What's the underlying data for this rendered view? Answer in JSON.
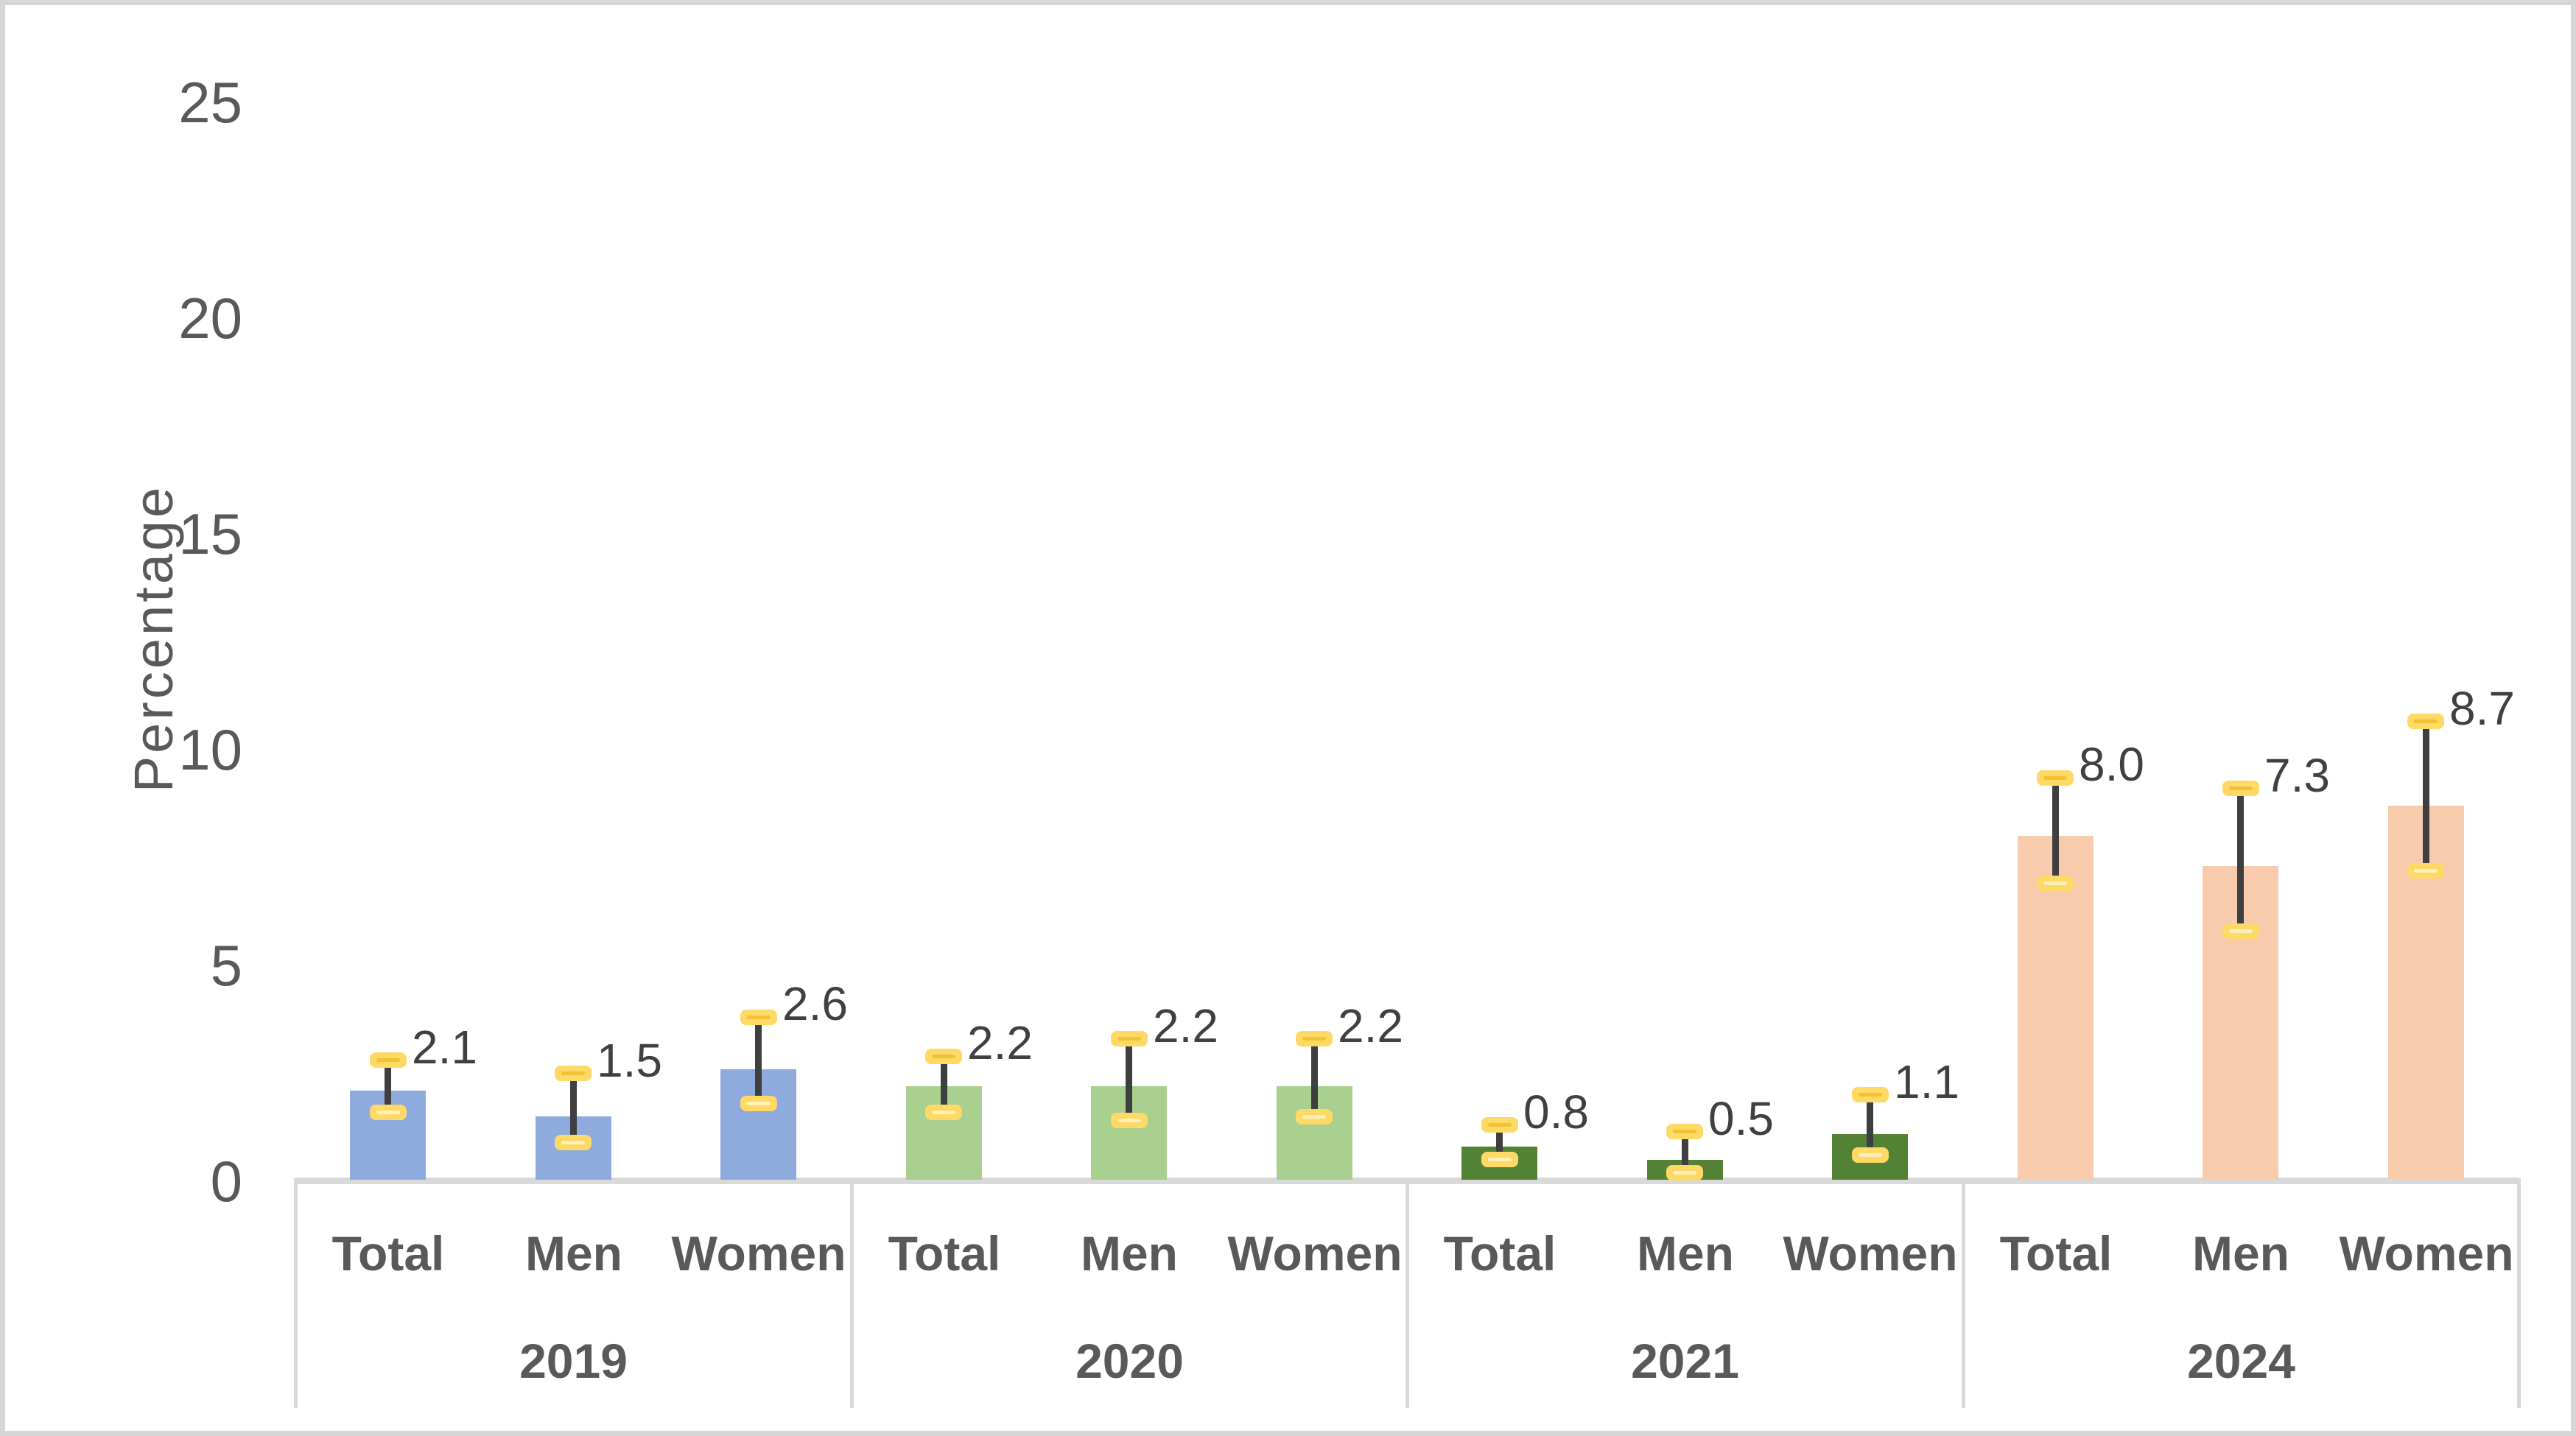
{
  "chart_data": {
    "type": "bar",
    "title": "",
    "xlabel": "",
    "ylabel": "Percentage",
    "ylim": [
      0,
      25
    ],
    "yticks": [
      "0",
      "5",
      "10",
      "15",
      "20",
      "25"
    ],
    "grid": false,
    "legend": false,
    "error_bars": true,
    "error_cap_color": "#FFD966",
    "error_line_color": "#3F3F3F",
    "axis_color": "#D9D9D9",
    "tick_text_color": "#595959",
    "value_label_color": "#404040",
    "categories_per_group": [
      "Total",
      "Men",
      "Women"
    ],
    "groups": [
      {
        "year": "2019",
        "bar_color": "#8FAADC",
        "bars": [
          {
            "category": "Total",
            "value": 2.1,
            "label": "2.1",
            "err_low": 1.6,
            "err_high": 2.8
          },
          {
            "category": "Men",
            "value": 1.5,
            "label": "1.5",
            "err_low": 0.9,
            "err_high": 2.5
          },
          {
            "category": "Women",
            "value": 2.6,
            "label": "2.6",
            "err_low": 1.8,
            "err_high": 3.8
          }
        ]
      },
      {
        "year": "2020",
        "bar_color": "#A9D08E",
        "bars": [
          {
            "category": "Total",
            "value": 2.2,
            "label": "2.2",
            "err_low": 1.6,
            "err_high": 2.9
          },
          {
            "category": "Men",
            "value": 2.2,
            "label": "2.2",
            "err_low": 1.4,
            "err_high": 3.3
          },
          {
            "category": "Women",
            "value": 2.2,
            "label": "2.2",
            "err_low": 1.5,
            "err_high": 3.3
          }
        ]
      },
      {
        "year": "2021",
        "bar_color": "#548235",
        "bars": [
          {
            "category": "Total",
            "value": 0.8,
            "label": "0.8",
            "err_low": 0.5,
            "err_high": 1.3
          },
          {
            "category": "Men",
            "value": 0.5,
            "label": "0.5",
            "err_low": 0.2,
            "err_high": 1.15
          },
          {
            "category": "Women",
            "value": 1.1,
            "label": "1.1",
            "err_low": 0.6,
            "err_high": 2.0
          }
        ]
      },
      {
        "year": "2024",
        "bar_color": "#F8CBAD",
        "bars": [
          {
            "category": "Total",
            "value": 8.0,
            "label": "8.0",
            "err_low": 6.9,
            "err_high": 9.35
          },
          {
            "category": "Men",
            "value": 7.3,
            "label": "7.3",
            "err_low": 5.8,
            "err_high": 9.1
          },
          {
            "category": "Women",
            "value": 8.7,
            "label": "8.7",
            "err_low": 7.2,
            "err_high": 10.65
          }
        ]
      }
    ]
  }
}
